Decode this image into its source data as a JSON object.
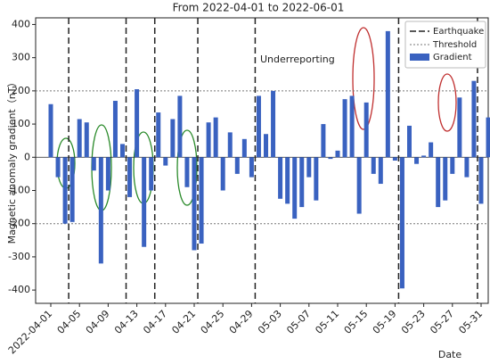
{
  "chart_data": {
    "type": "bar",
    "title": "From  2022-04-01  to  2022-06-01",
    "ylabel": "Magnetic anomaly gradient（nT）",
    "xlabel": "Date",
    "annotation": "Underreporting",
    "categories": [
      "2022-04-01",
      null,
      null,
      null,
      "04-05",
      null,
      null,
      null,
      "04-09",
      null,
      null,
      null,
      "04-13",
      null,
      null,
      null,
      "04-17",
      null,
      null,
      null,
      "04-21",
      null,
      null,
      null,
      "04-25",
      null,
      null,
      null,
      "04-29",
      null,
      null,
      null,
      "05-03",
      null,
      null,
      null,
      "05-07",
      null,
      null,
      null,
      "05-11",
      null,
      null,
      null,
      "05-15",
      null,
      null,
      null,
      "05-19",
      null,
      null,
      null,
      "05-23",
      null,
      null,
      null,
      "05-27",
      null,
      null,
      null,
      "05-31",
      null
    ],
    "series": [
      {
        "name": "Gradient",
        "color": "#3a62c0",
        "values": [
          160,
          -60,
          -200,
          -195,
          115,
          105,
          -40,
          -320,
          -100,
          170,
          40,
          -120,
          205,
          -270,
          -100,
          135,
          -25,
          115,
          185,
          -90,
          -280,
          -260,
          105,
          120,
          -100,
          75,
          -50,
          55,
          -60,
          185,
          70,
          200,
          -125,
          -140,
          -185,
          -150,
          -60,
          -130,
          100,
          -5,
          20,
          175,
          185,
          -170,
          165,
          -50,
          -80,
          380,
          -10,
          -395,
          95,
          -20,
          5,
          45,
          -150,
          -130,
          -50,
          180,
          -60,
          230,
          -140,
          120
        ]
      }
    ],
    "threshold": {
      "name": "Threshold",
      "values": [
        200,
        -200
      ]
    },
    "earthquakes": {
      "name": "Earthquake",
      "indices": [
        3,
        11,
        15,
        21,
        29,
        49,
        60
      ]
    },
    "ylim": [
      -440,
      420
    ],
    "yticks": [
      -400,
      -300,
      -200,
      -100,
      0,
      100,
      200,
      300,
      400
    ],
    "legend": "upper right"
  }
}
